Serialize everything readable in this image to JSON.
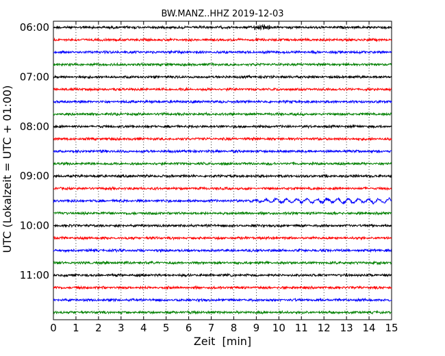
{
  "chart_data": {
    "type": "line",
    "title": "BW.MANZ..HHZ 2019-12-03",
    "xlabel": "Zeit  [min]",
    "ylabel": "UTC (Lokalzeit = UTC + 01:00)",
    "xlim": [
      0,
      15
    ],
    "x_ticks": [
      "0",
      "1",
      "2",
      "3",
      "4",
      "5",
      "6",
      "7",
      "8",
      "9",
      "10",
      "11",
      "12",
      "13",
      "14",
      "15"
    ],
    "y_tick_labels": [
      "06:00",
      "07:00",
      "08:00",
      "09:00",
      "10:00",
      "11:00"
    ],
    "trace_interval_minutes": 15,
    "trace_start": "06:00",
    "trace_count": 24,
    "trace_colors": [
      "#000000",
      "#ff0000",
      "#0000ff",
      "#008000"
    ],
    "vertical_grid": "dotted, every minute",
    "notable_events": [
      {
        "trace": 0,
        "x_range": [
          8.9,
          9.6
        ],
        "description": "larger amplitude burst"
      },
      {
        "trace": 14,
        "x_range": [
          8.5,
          15
        ],
        "description": "long-period wave train"
      }
    ]
  }
}
